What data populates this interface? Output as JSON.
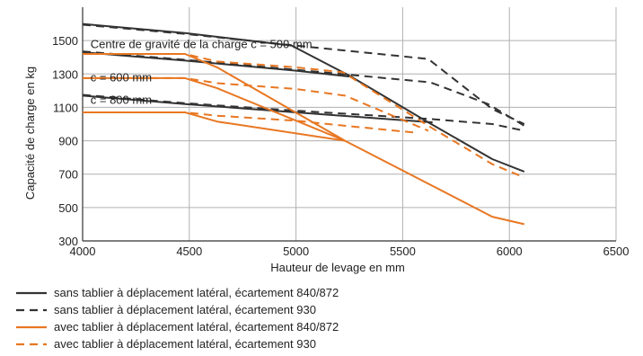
{
  "chart_data": {
    "type": "line",
    "xlabel": "Hauteur de levage en mm",
    "ylabel": "Capacité de charge en kg",
    "xlim": [
      4000,
      6500
    ],
    "ylim": [
      300,
      1700
    ],
    "xticks": [
      4000,
      4500,
      5000,
      5500,
      6000,
      6500
    ],
    "yticks": [
      300,
      500,
      700,
      900,
      1100,
      1300,
      1500
    ],
    "grid": true,
    "colors": {
      "black": "#333333",
      "orange": "#e87722",
      "grid": "#b0b0b0"
    },
    "annotations": [
      {
        "text": "Centre de gravité de la charge c = 500 mm",
        "x": 4020,
        "y": 1455
      },
      {
        "text": "c = 600 mm",
        "x": 4020,
        "y": 1255
      },
      {
        "text": "c = 800 mm",
        "x": 4020,
        "y": 1120
      }
    ],
    "legend": [
      {
        "label": "sans tablier à déplacement latéral, écartement 840/872",
        "color": "#333333",
        "dashed": false
      },
      {
        "label": "sans tablier à déplacement latéral, écartement 930",
        "color": "#333333",
        "dashed": true
      },
      {
        "label": "avec tablier à déplacement latéral, écartement 840/872",
        "color": "#e87722",
        "dashed": false
      },
      {
        "label": "avec tablier à déplacement latéral, écartement 930",
        "color": "#e87722",
        "dashed": true
      }
    ],
    "series": [
      {
        "legend_index": 0,
        "color": "#333333",
        "dashed": false,
        "points": [
          [
            4000,
            1600
          ],
          [
            4480,
            1545
          ],
          [
            4980,
            1470
          ],
          [
            5250,
            1290
          ],
          [
            5620,
            1010
          ],
          [
            5920,
            790
          ],
          [
            6070,
            715
          ]
        ]
      },
      {
        "legend_index": 0,
        "color": "#333333",
        "dashed": false,
        "points": [
          [
            4000,
            1430
          ],
          [
            4480,
            1380
          ],
          [
            5000,
            1320
          ],
          [
            5250,
            1285
          ]
        ]
      },
      {
        "legend_index": 0,
        "color": "#333333",
        "dashed": false,
        "points": [
          [
            4000,
            1170
          ],
          [
            4480,
            1120
          ],
          [
            5000,
            1070
          ],
          [
            5640,
            1010
          ]
        ]
      },
      {
        "legend_index": 1,
        "color": "#333333",
        "dashed": true,
        "points": [
          [
            4000,
            1595
          ],
          [
            4480,
            1540
          ],
          [
            5000,
            1470
          ],
          [
            5620,
            1390
          ],
          [
            5920,
            1090
          ],
          [
            6070,
            1000
          ]
        ]
      },
      {
        "legend_index": 1,
        "color": "#333333",
        "dashed": true,
        "points": [
          [
            4000,
            1435
          ],
          [
            4480,
            1385
          ],
          [
            5000,
            1325
          ],
          [
            5630,
            1250
          ],
          [
            5900,
            1120
          ],
          [
            6070,
            990
          ]
        ]
      },
      {
        "legend_index": 1,
        "color": "#333333",
        "dashed": true,
        "points": [
          [
            4000,
            1175
          ],
          [
            4480,
            1125
          ],
          [
            5000,
            1080
          ],
          [
            5630,
            1030
          ],
          [
            5920,
            1000
          ],
          [
            6070,
            960
          ]
        ]
      },
      {
        "legend_index": 2,
        "color": "#e87722",
        "dashed": false,
        "points": [
          [
            4000,
            1420
          ],
          [
            4480,
            1420
          ],
          [
            4630,
            1340
          ],
          [
            5230,
            900
          ],
          [
            5920,
            445
          ],
          [
            6070,
            400
          ]
        ]
      },
      {
        "legend_index": 2,
        "color": "#e87722",
        "dashed": false,
        "points": [
          [
            4000,
            1275
          ],
          [
            4480,
            1275
          ],
          [
            4630,
            1215
          ],
          [
            5230,
            900
          ]
        ]
      },
      {
        "legend_index": 2,
        "color": "#e87722",
        "dashed": false,
        "points": [
          [
            4000,
            1070
          ],
          [
            4480,
            1070
          ],
          [
            4630,
            1015
          ],
          [
            5230,
            900
          ]
        ]
      },
      {
        "legend_index": 3,
        "color": "#e87722",
        "dashed": true,
        "points": [
          [
            4000,
            1420
          ],
          [
            4480,
            1420
          ],
          [
            4630,
            1375
          ],
          [
            5000,
            1340
          ],
          [
            5220,
            1310
          ],
          [
            5620,
            990
          ],
          [
            5920,
            760
          ],
          [
            6070,
            680
          ]
        ]
      },
      {
        "legend_index": 3,
        "color": "#e87722",
        "dashed": true,
        "points": [
          [
            4000,
            1275
          ],
          [
            4480,
            1275
          ],
          [
            4630,
            1245
          ],
          [
            5000,
            1210
          ],
          [
            5230,
            1170
          ],
          [
            5620,
            960
          ]
        ]
      },
      {
        "legend_index": 3,
        "color": "#e87722",
        "dashed": true,
        "points": [
          [
            4000,
            1070
          ],
          [
            4480,
            1070
          ],
          [
            4630,
            1050
          ],
          [
            5000,
            1020
          ],
          [
            5230,
            990
          ],
          [
            5550,
            950
          ]
        ]
      }
    ]
  }
}
